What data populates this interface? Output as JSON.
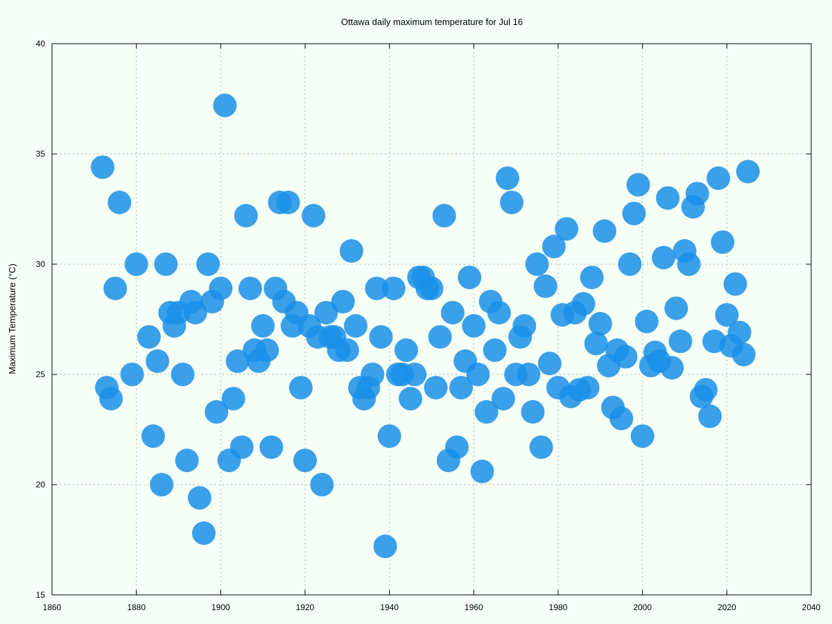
{
  "chart_data": {
    "type": "scatter",
    "title": "Ottawa daily maximum temperature for Jul 16",
    "xlabel": "",
    "ylabel": "Maximum Temperature (°C)",
    "xlim": [
      1860,
      2040
    ],
    "ylim": [
      15,
      40
    ],
    "xticks": [
      1860,
      1880,
      1900,
      1920,
      1940,
      1960,
      1980,
      2000,
      2020,
      2040
    ],
    "yticks": [
      15,
      20,
      25,
      30,
      35,
      40
    ],
    "grid": true,
    "legend": "none",
    "point_color": "#1a8fe8",
    "series": [
      {
        "points": [
          [
            1872,
            34.4
          ],
          [
            1873,
            24.4
          ],
          [
            1874,
            23.9
          ],
          [
            1875,
            28.9
          ],
          [
            1876,
            32.8
          ],
          [
            1879,
            25.0
          ],
          [
            1880,
            30.0
          ],
          [
            1883,
            26.7
          ],
          [
            1884,
            22.2
          ],
          [
            1885,
            25.6
          ],
          [
            1886,
            20.0
          ],
          [
            1887,
            30.0
          ],
          [
            1888,
            27.8
          ],
          [
            1889,
            27.2
          ],
          [
            1890,
            27.8
          ],
          [
            1891,
            25.0
          ],
          [
            1892,
            21.1
          ],
          [
            1893,
            28.3
          ],
          [
            1894,
            27.8
          ],
          [
            1895,
            19.4
          ],
          [
            1896,
            17.8
          ],
          [
            1897,
            30.0
          ],
          [
            1898,
            28.3
          ],
          [
            1899,
            23.3
          ],
          [
            1900,
            28.9
          ],
          [
            1901,
            37.2
          ],
          [
            1902,
            21.1
          ],
          [
            1903,
            23.9
          ],
          [
            1904,
            25.6
          ],
          [
            1905,
            21.7
          ],
          [
            1906,
            32.2
          ],
          [
            1907,
            28.9
          ],
          [
            1908,
            26.1
          ],
          [
            1909,
            25.6
          ],
          [
            1910,
            27.2
          ],
          [
            1911,
            26.1
          ],
          [
            1912,
            21.7
          ],
          [
            1913,
            28.9
          ],
          [
            1914,
            32.8
          ],
          [
            1915,
            28.3
          ],
          [
            1916,
            32.8
          ],
          [
            1917,
            27.2
          ],
          [
            1918,
            27.8
          ],
          [
            1919,
            24.4
          ],
          [
            1920,
            21.1
          ],
          [
            1921,
            27.2
          ],
          [
            1922,
            32.2
          ],
          [
            1923,
            26.7
          ],
          [
            1924,
            20.0
          ],
          [
            1925,
            27.8
          ],
          [
            1926,
            26.7
          ],
          [
            1927,
            26.7
          ],
          [
            1928,
            26.1
          ],
          [
            1929,
            28.3
          ],
          [
            1930,
            26.1
          ],
          [
            1931,
            30.6
          ],
          [
            1932,
            27.2
          ],
          [
            1933,
            24.4
          ],
          [
            1934,
            23.9
          ],
          [
            1935,
            24.4
          ],
          [
            1936,
            25.0
          ],
          [
            1937,
            28.9
          ],
          [
            1938,
            26.7
          ],
          [
            1939,
            17.2
          ],
          [
            1940,
            22.2
          ],
          [
            1941,
            28.9
          ],
          [
            1942,
            25.0
          ],
          [
            1943,
            25.0
          ],
          [
            1944,
            26.1
          ],
          [
            1945,
            23.9
          ],
          [
            1946,
            25.0
          ],
          [
            1947,
            29.4
          ],
          [
            1948,
            29.4
          ],
          [
            1949,
            28.9
          ],
          [
            1950,
            28.9
          ],
          [
            1951,
            24.4
          ],
          [
            1952,
            26.7
          ],
          [
            1953,
            32.2
          ],
          [
            1954,
            21.1
          ],
          [
            1955,
            27.8
          ],
          [
            1956,
            21.7
          ],
          [
            1957,
            24.4
          ],
          [
            1958,
            25.6
          ],
          [
            1959,
            29.4
          ],
          [
            1960,
            27.2
          ],
          [
            1961,
            25.0
          ],
          [
            1962,
            20.6
          ],
          [
            1963,
            23.3
          ],
          [
            1964,
            28.3
          ],
          [
            1965,
            26.1
          ],
          [
            1966,
            27.8
          ],
          [
            1967,
            23.9
          ],
          [
            1968,
            33.9
          ],
          [
            1969,
            32.8
          ],
          [
            1970,
            25.0
          ],
          [
            1971,
            26.7
          ],
          [
            1972,
            27.2
          ],
          [
            1973,
            25.0
          ],
          [
            1974,
            23.3
          ],
          [
            1975,
            30.0
          ],
          [
            1976,
            21.7
          ],
          [
            1977,
            29.0
          ],
          [
            1978,
            25.5
          ],
          [
            1979,
            30.8
          ],
          [
            1980,
            24.4
          ],
          [
            1981,
            27.7
          ],
          [
            1982,
            31.6
          ],
          [
            1983,
            24.0
          ],
          [
            1984,
            27.8
          ],
          [
            1985,
            24.3
          ],
          [
            1986,
            28.2
          ],
          [
            1987,
            24.4
          ],
          [
            1988,
            29.4
          ],
          [
            1989,
            26.4
          ],
          [
            1990,
            27.3
          ],
          [
            1991,
            31.5
          ],
          [
            1992,
            25.4
          ],
          [
            1993,
            23.5
          ],
          [
            1994,
            26.1
          ],
          [
            1995,
            23.0
          ],
          [
            1996,
            25.8
          ],
          [
            1997,
            30.0
          ],
          [
            1998,
            32.3
          ],
          [
            1999,
            33.6
          ],
          [
            2000,
            22.2
          ],
          [
            2001,
            27.4
          ],
          [
            2002,
            25.4
          ],
          [
            2003,
            26.0
          ],
          [
            2004,
            25.6
          ],
          [
            2005,
            30.3
          ],
          [
            2006,
            33.0
          ],
          [
            2007,
            25.3
          ],
          [
            2008,
            28.0
          ],
          [
            2009,
            26.5
          ],
          [
            2010,
            30.6
          ],
          [
            2011,
            30.0
          ],
          [
            2012,
            32.6
          ],
          [
            2013,
            33.2
          ],
          [
            2014,
            24.0
          ],
          [
            2015,
            24.3
          ],
          [
            2016,
            23.1
          ],
          [
            2017,
            26.5
          ],
          [
            2018,
            33.9
          ],
          [
            2019,
            31.0
          ],
          [
            2020,
            27.7
          ],
          [
            2021,
            26.3
          ],
          [
            2022,
            29.1
          ],
          [
            2023,
            26.9
          ],
          [
            2024,
            25.9
          ],
          [
            2025,
            34.2
          ]
        ]
      }
    ]
  }
}
